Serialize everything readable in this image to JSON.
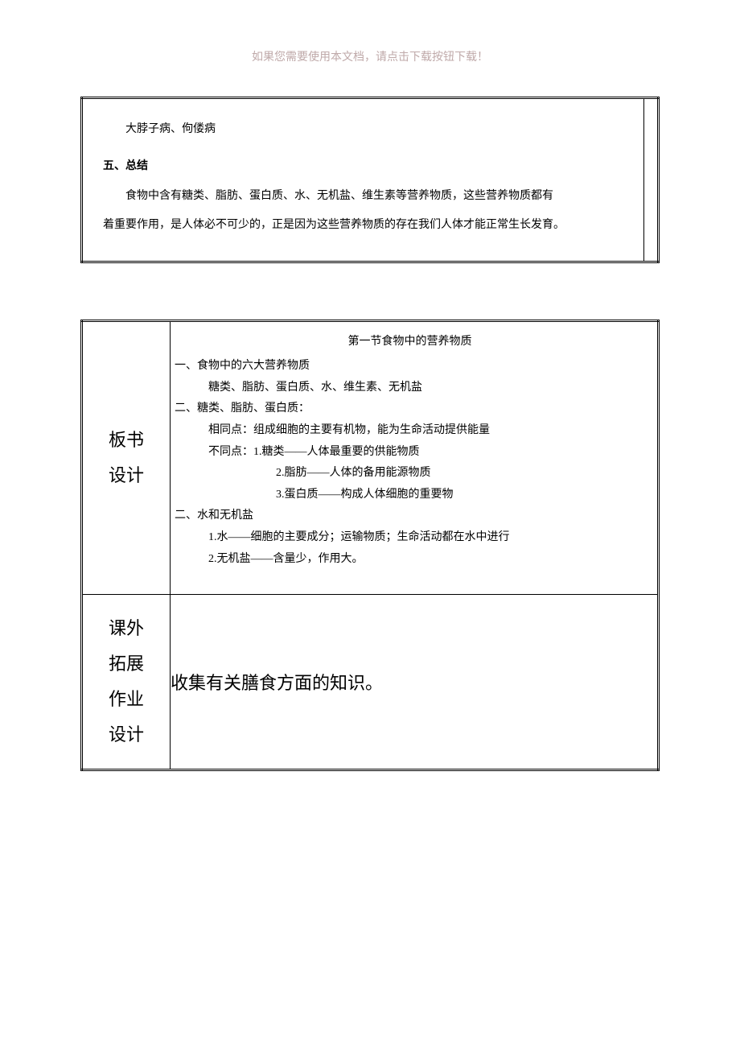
{
  "header": "如果您需要使用本文档，请点击下载按钮下载！",
  "upper_box": {
    "line1": "大脖子病、佝偻病",
    "section_label": "五、总结",
    "summary1": "食物中含有糖类、脂肪、蛋白质、水、无机盐、维生素等营养物质，这些营养物质都有",
    "summary2": "着重要作用，是人体必不可少的，正是因为这些营养物质的存在我们人体才能正常生长发育。"
  },
  "lower_box": {
    "row1_label_1": "板书",
    "row1_label_2": "设计",
    "board": {
      "title": "第一节食物中的营养物质",
      "h1": "一、食物中的六大营养物质",
      "h1_content": "糖类、脂肪、蛋白质、水、维生素、无机盐",
      "h2": "二、糖类、脂肪、蛋白质：",
      "h2_same": "相同点：组成细胞的主要有机物，能为生命活动提供能量",
      "h2_diff": "不同点：1.糖类——人体最重要的供能物质",
      "h2_diff2": "2.脂肪——人体的备用能源物质",
      "h2_diff3": "3.蛋白质——构成人体细胞的重要物",
      "h3": "二、水和无机盐",
      "h3_1": "1.水——细胞的主要成分；运输物质；生命活动都在水中进行",
      "h3_2": "2.无机盐——含量少，作用大。"
    },
    "row2_label_1": "课外",
    "row2_label_2": "拓展",
    "row2_label_3": "作业",
    "row2_label_4": "设计",
    "homework": "收集有关膳食方面的知识。"
  }
}
